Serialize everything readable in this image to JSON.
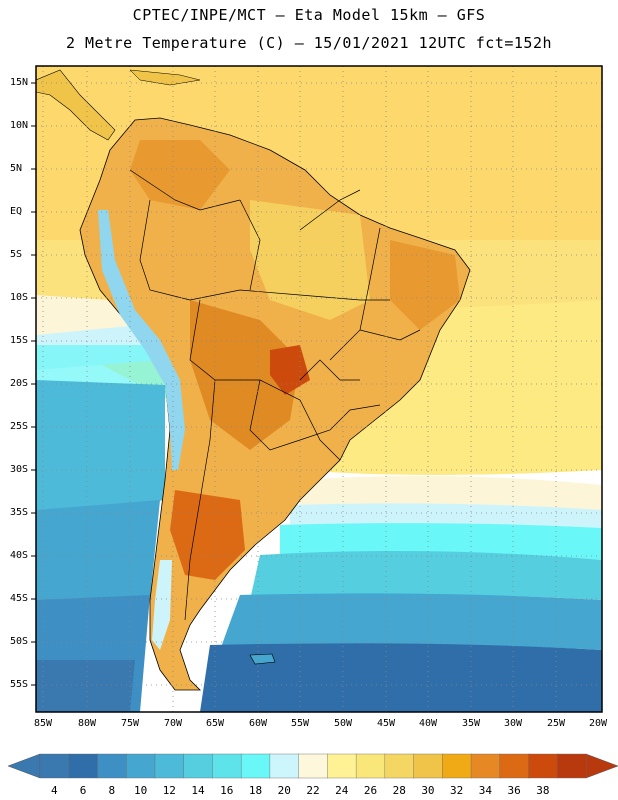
{
  "title_line1": "CPTEC/INPE/MCT –  Eta Model 15km – GFS",
  "title_line2": "2 Metre Temperature (C) – 15/01/2021 12UTC fct=152h",
  "lat_labels": [
    "15N",
    "10N",
    "5N",
    "EQ",
    "5S",
    "10S",
    "15S",
    "20S",
    "25S",
    "30S",
    "35S",
    "40S",
    "45S",
    "50S",
    "55S"
  ],
  "lon_labels": [
    "85W",
    "80W",
    "75W",
    "70W",
    "65W",
    "60W",
    "55W",
    "50W",
    "45W",
    "40W",
    "35W",
    "30W",
    "25W",
    "20W"
  ],
  "colorbar": {
    "labels": [
      "4",
      "6",
      "8",
      "10",
      "12",
      "14",
      "16",
      "18",
      "20",
      "22",
      "24",
      "26",
      "28",
      "30",
      "32",
      "34",
      "36",
      "38"
    ],
    "colors": [
      "#3a78b0",
      "#2f6ea8",
      "#3d8fc4",
      "#45a6cf",
      "#4dbad9",
      "#55cfe0",
      "#5ee3ea",
      "#6af7f7",
      "#ccf5fc",
      "#fdf7dc",
      "#fef295",
      "#fae77a",
      "#f4d763",
      "#f0c449",
      "#efaa16",
      "#e68925",
      "#dc6a14",
      "#cc4a0c",
      "#b8390e"
    ],
    "arrow_left_color": "#3a78b0",
    "arrow_right_color": "#b8390e"
  },
  "map": {
    "ocean_warm": "#fdd86c",
    "land_warm": "#f0b14a",
    "land_hot": "#e08a24",
    "land_cool": "#f5d05e",
    "andes_cold": "#8fd6ee",
    "border_color": "#000000",
    "grid_color": "#888888"
  }
}
